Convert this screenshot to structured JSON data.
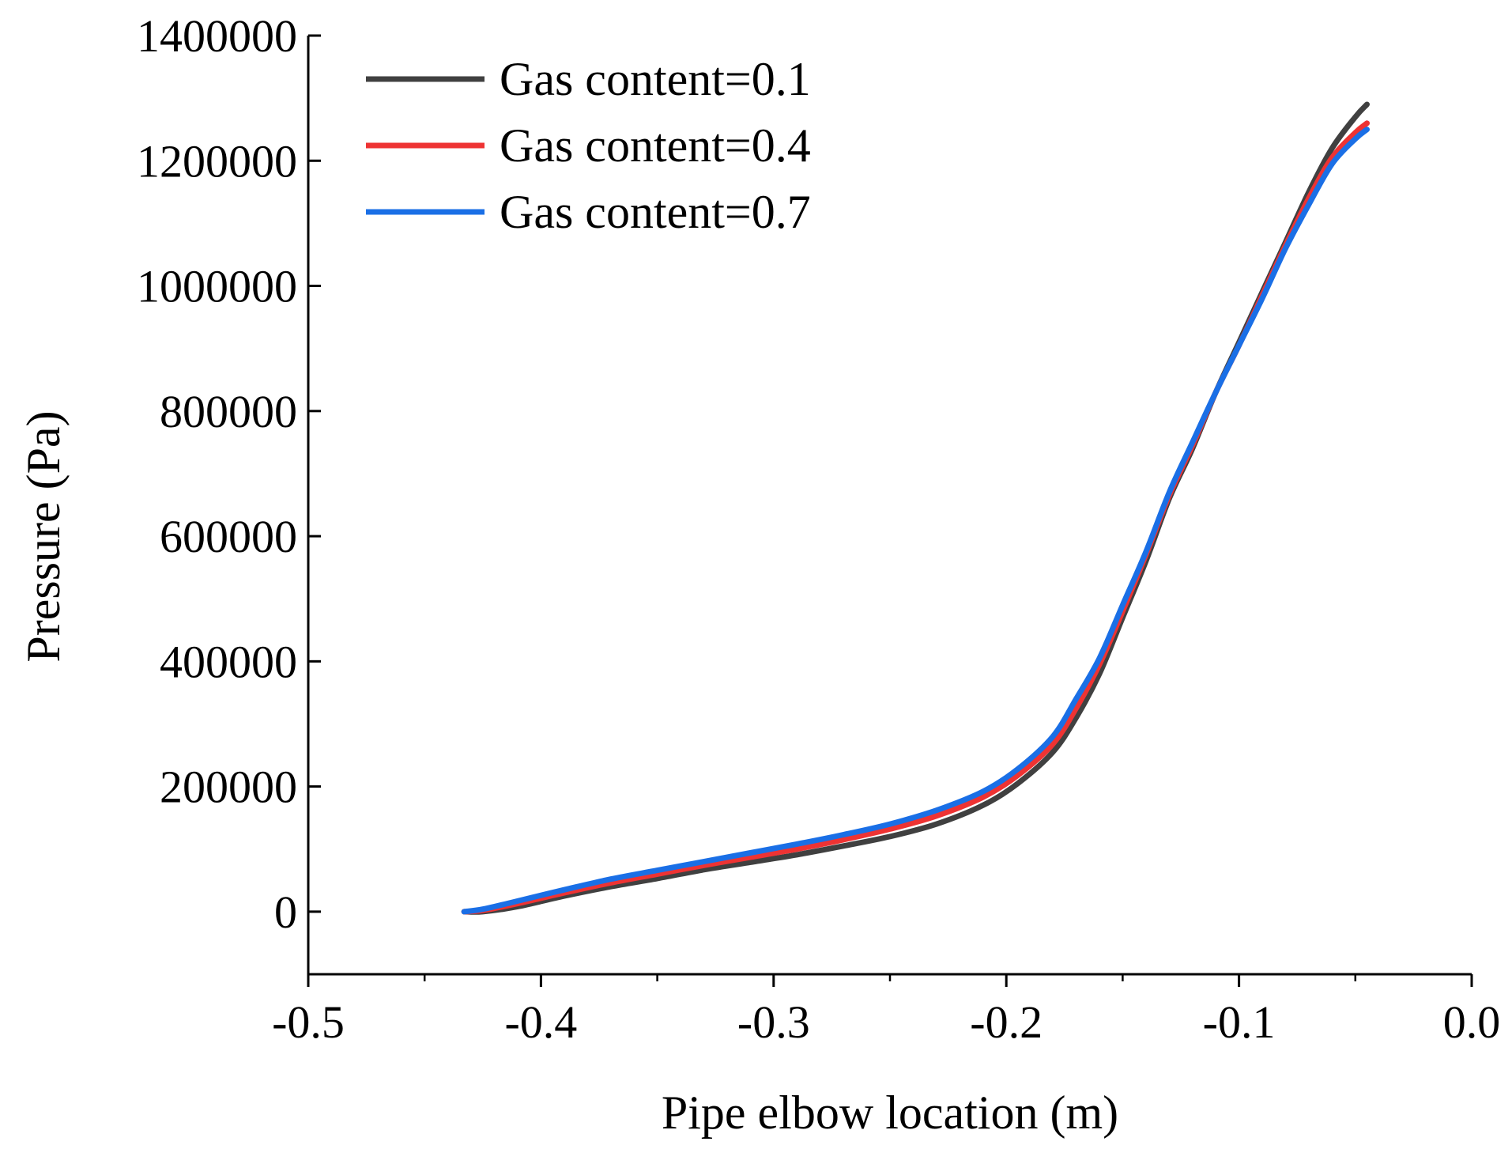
{
  "chart_data": {
    "type": "line",
    "title": "",
    "xlabel": "Pipe elbow location (m)",
    "ylabel": "Pressure (Pa)",
    "xlim": [
      -0.5,
      0.0
    ],
    "ylim": [
      -100000,
      1400000
    ],
    "x_ticks": [
      -0.5,
      -0.4,
      -0.3,
      -0.2,
      -0.1,
      0.0
    ],
    "x_tick_labels": [
      "-0.5",
      "-0.4",
      "-0.3",
      "-0.2",
      "-0.1",
      "0.0"
    ],
    "y_ticks": [
      0,
      200000,
      400000,
      600000,
      800000,
      1000000,
      1200000,
      1400000
    ],
    "y_tick_labels": [
      "0",
      "200000",
      "400000",
      "600000",
      "800000",
      "1000000",
      "1200000",
      "1400000"
    ],
    "grid": false,
    "legend_position": "top-left",
    "series": [
      {
        "name": "Gas content=0.1",
        "color": "#404040",
        "x": [
          -0.433,
          -0.425,
          -0.41,
          -0.39,
          -0.37,
          -0.35,
          -0.33,
          -0.31,
          -0.29,
          -0.27,
          -0.25,
          -0.23,
          -0.21,
          -0.195,
          -0.18,
          -0.17,
          -0.16,
          -0.15,
          -0.14,
          -0.13,
          -0.12,
          -0.11,
          -0.1,
          -0.09,
          -0.08,
          -0.07,
          -0.06,
          -0.05,
          -0.045
        ],
        "y": [
          0,
          0,
          8000,
          25000,
          40000,
          53000,
          67000,
          79000,
          91000,
          105000,
          120000,
          140000,
          170000,
          205000,
          255000,
          310000,
          380000,
          470000,
          560000,
          660000,
          740000,
          830000,
          910000,
          990000,
          1070000,
          1150000,
          1220000,
          1270000,
          1290000
        ]
      },
      {
        "name": "Gas content=0.4",
        "color": "#ee3333",
        "x": [
          -0.433,
          -0.425,
          -0.41,
          -0.39,
          -0.37,
          -0.35,
          -0.33,
          -0.31,
          -0.29,
          -0.27,
          -0.25,
          -0.23,
          -0.21,
          -0.195,
          -0.18,
          -0.17,
          -0.16,
          -0.15,
          -0.14,
          -0.13,
          -0.12,
          -0.11,
          -0.1,
          -0.09,
          -0.08,
          -0.07,
          -0.06,
          -0.05,
          -0.045
        ],
        "y": [
          0,
          2000,
          13000,
          30000,
          46000,
          60000,
          74000,
          87000,
          100000,
          115000,
          132000,
          153000,
          183000,
          218000,
          268000,
          325000,
          395000,
          480000,
          570000,
          665000,
          745000,
          830000,
          905000,
          985000,
          1065000,
          1140000,
          1205000,
          1245000,
          1260000
        ]
      },
      {
        "name": "Gas content=0.7",
        "color": "#1a6fe6",
        "x": [
          -0.433,
          -0.425,
          -0.41,
          -0.39,
          -0.37,
          -0.35,
          -0.33,
          -0.31,
          -0.29,
          -0.27,
          -0.25,
          -0.23,
          -0.21,
          -0.195,
          -0.18,
          -0.17,
          -0.16,
          -0.15,
          -0.14,
          -0.13,
          -0.12,
          -0.11,
          -0.1,
          -0.09,
          -0.08,
          -0.07,
          -0.06,
          -0.05,
          -0.045
        ],
        "y": [
          0,
          4000,
          17000,
          35000,
          52000,
          66000,
          80000,
          94000,
          108000,
          123000,
          140000,
          162000,
          192000,
          228000,
          280000,
          340000,
          405000,
          490000,
          575000,
          670000,
          750000,
          830000,
          905000,
          980000,
          1060000,
          1130000,
          1195000,
          1235000,
          1250000
        ]
      }
    ]
  }
}
